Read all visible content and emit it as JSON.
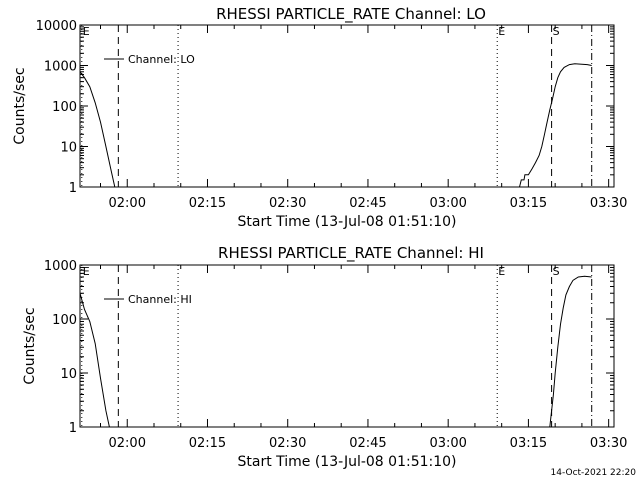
{
  "timestamp": "14-Oct-2021 22:20",
  "chart_data": [
    {
      "type": "line",
      "title": "RHESSI PARTICLE_RATE Channel: LO",
      "xlabel": "Start Time (13-Jul-08 01:51:10)",
      "ylabel": "Counts/sec",
      "yscale": "log",
      "xlim": [
        "01:51:10",
        "03:31:00"
      ],
      "ylim": [
        1,
        10000
      ],
      "xticks": [
        "02:00",
        "02:15",
        "02:30",
        "02:45",
        "03:00",
        "03:15",
        "03:30"
      ],
      "yticks": [
        "1",
        "10",
        "100",
        "1000",
        "10000"
      ],
      "legend": {
        "label": "Channel: LO",
        "placement": "top-left"
      },
      "markers": [
        {
          "label": "E",
          "time": "01:51:30",
          "style": "dotted"
        },
        {
          "label": "",
          "time": "01:58:20",
          "style": "dashed"
        },
        {
          "label": "",
          "time": "02:09:30",
          "style": "dotted"
        },
        {
          "label": "E",
          "time": "03:09:10",
          "style": "dotted"
        },
        {
          "label": "S",
          "time": "03:19:20",
          "style": "dashed"
        },
        {
          "label": "",
          "time": "03:26:50",
          "style": "dashdot"
        }
      ],
      "series": [
        {
          "segments": [
            [
              [
                "01:51:10",
                700
              ],
              [
                "01:52:00",
                500
              ],
              [
                "01:53:00",
                300
              ],
              [
                "01:54:00",
                120
              ],
              [
                "01:55:00",
                40
              ],
              [
                "01:56:00",
                10
              ],
              [
                "01:57:00",
                2.5
              ],
              [
                "01:57:40",
                1
              ]
            ],
            [
              [
                "03:13:20",
                1
              ],
              [
                "03:13:40",
                1.5
              ],
              [
                "03:14:10",
                1.5
              ],
              [
                "03:14:20",
                2
              ],
              [
                "03:15:00",
                2
              ],
              [
                "03:15:40",
                2.8
              ],
              [
                "03:16:20",
                4
              ],
              [
                "03:17:00",
                6
              ],
              [
                "03:17:30",
                10
              ],
              [
                "03:18:00",
                20
              ],
              [
                "03:18:30",
                40
              ],
              [
                "03:19:00",
                80
              ],
              [
                "03:19:30",
                150
              ],
              [
                "03:20:00",
                300
              ],
              [
                "03:20:30",
                500
              ],
              [
                "03:21:00",
                700
              ],
              [
                "03:21:40",
                900
              ],
              [
                "03:22:40",
                1050
              ],
              [
                "03:23:40",
                1100
              ],
              [
                "03:24:40",
                1080
              ],
              [
                "03:26:00",
                1050
              ],
              [
                "03:26:50",
                1000
              ]
            ]
          ]
        }
      ]
    },
    {
      "type": "line",
      "title": "RHESSI PARTICLE_RATE Channel: HI",
      "xlabel": "Start Time (13-Jul-08 01:51:10)",
      "ylabel": "Counts/sec",
      "yscale": "log",
      "xlim": [
        "01:51:10",
        "03:31:00"
      ],
      "ylim": [
        1,
        1000
      ],
      "xticks": [
        "02:00",
        "02:15",
        "02:30",
        "02:45",
        "03:00",
        "03:15",
        "03:30"
      ],
      "yticks": [
        "1",
        "10",
        "100",
        "1000"
      ],
      "legend": {
        "label": "Channel: HI",
        "placement": "top-left"
      },
      "markers": [
        {
          "label": "E",
          "time": "01:51:30",
          "style": "dotted"
        },
        {
          "label": "",
          "time": "01:58:20",
          "style": "dashed"
        },
        {
          "label": "",
          "time": "02:09:30",
          "style": "dotted"
        },
        {
          "label": "E",
          "time": "03:09:10",
          "style": "dotted"
        },
        {
          "label": "S",
          "time": "03:19:20",
          "style": "dashed"
        },
        {
          "label": "",
          "time": "03:26:50",
          "style": "dashdot"
        }
      ],
      "series": [
        {
          "segments": [
            [
              [
                "01:51:10",
                300
              ],
              [
                "01:52:00",
                150
              ],
              [
                "01:53:00",
                90
              ],
              [
                "01:54:00",
                35
              ],
              [
                "01:55:00",
                8
              ],
              [
                "01:56:00",
                2
              ],
              [
                "01:56:40",
                1
              ]
            ],
            [
              [
                "03:19:00",
                1
              ],
              [
                "03:19:20",
                2
              ],
              [
                "03:19:40",
                4
              ],
              [
                "03:20:00",
                10
              ],
              [
                "03:20:30",
                30
              ],
              [
                "03:21:00",
                80
              ],
              [
                "03:21:30",
                160
              ],
              [
                "03:22:00",
                280
              ],
              [
                "03:22:40",
                400
              ],
              [
                "03:23:20",
                520
              ],
              [
                "03:24:20",
                600
              ],
              [
                "03:25:30",
                620
              ],
              [
                "03:26:50",
                600
              ]
            ]
          ]
        }
      ]
    }
  ]
}
